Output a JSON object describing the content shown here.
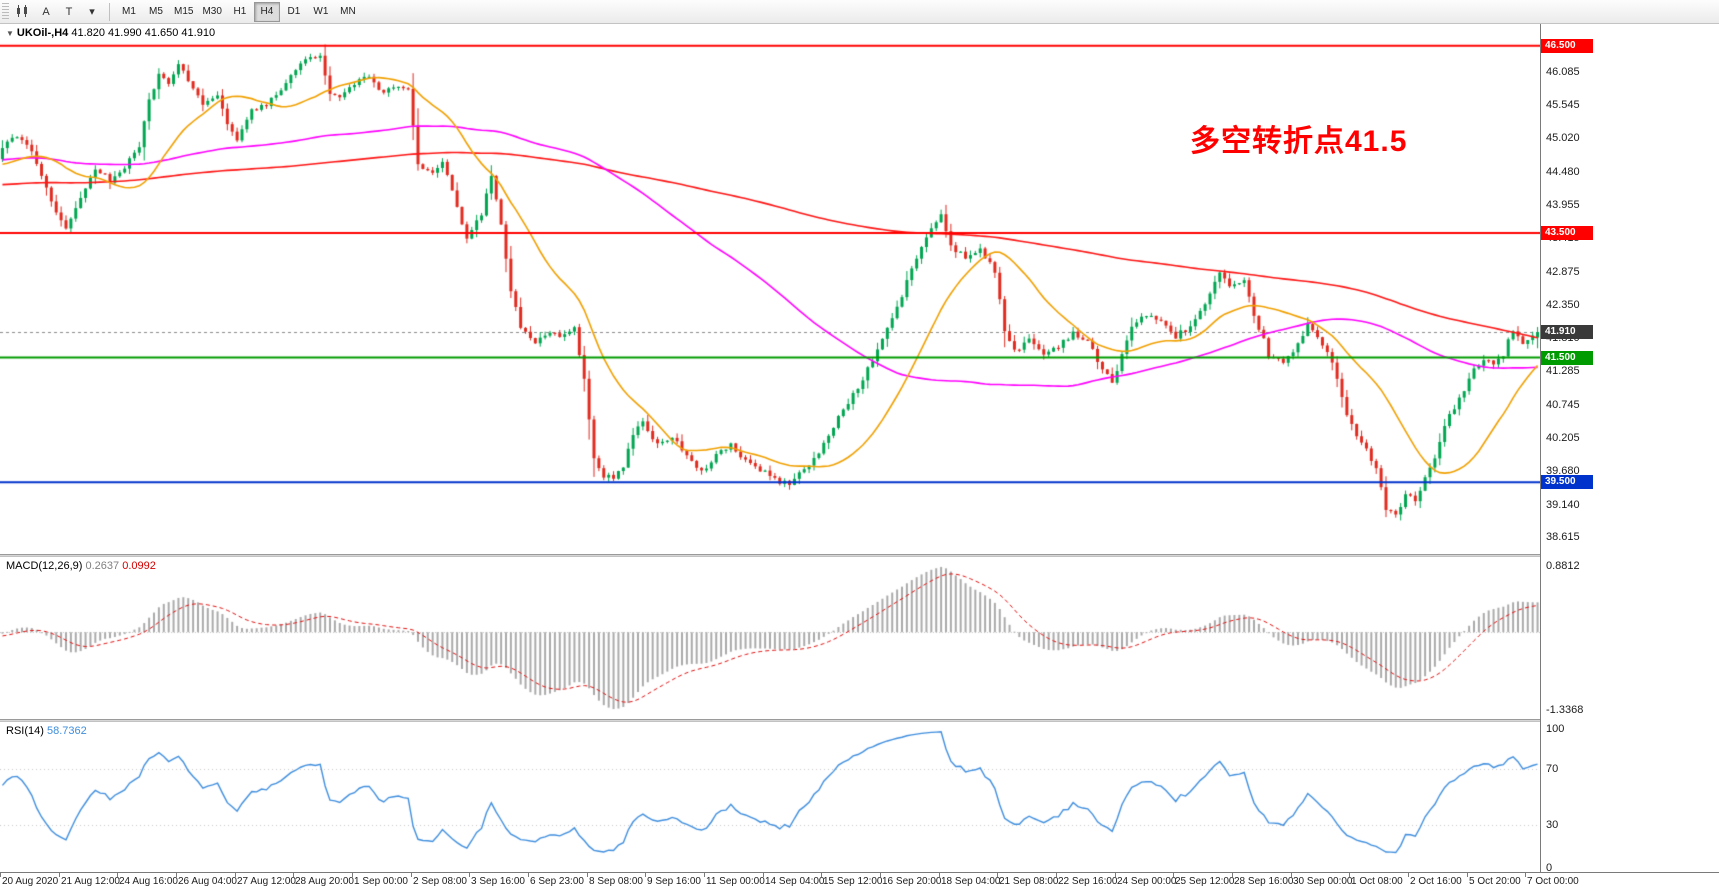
{
  "toolbar": {
    "tools": {
      "arrow": "A",
      "text": "T",
      "caret": "▾"
    },
    "timeframes": [
      "M1",
      "M5",
      "M15",
      "M30",
      "H1",
      "H4",
      "D1",
      "W1",
      "MN"
    ],
    "active_timeframe": "H4"
  },
  "chart": {
    "collapse_glyph": "▼",
    "symbol_label": "UKOil-,H4",
    "ohlc_label": "41.820 41.990 41.650 41.910",
    "annotation": "多空转折点41.5",
    "annotation_color": "#ff0000",
    "price_axis_labels": [
      "46.085",
      "45.545",
      "45.020",
      "44.480",
      "43.955",
      "43.415",
      "42.875",
      "42.350",
      "41.810",
      "41.285",
      "40.745",
      "40.205",
      "39.680",
      "39.140",
      "38.615"
    ]
  },
  "chart_data": {
    "type": "candlestick",
    "symbol": "UKOil-",
    "timeframe": "H4",
    "ohlc_current": {
      "open": 41.82,
      "high": 41.99,
      "low": 41.65,
      "close": 41.91
    },
    "price_range": [
      38.35,
      46.85
    ],
    "num_candles": 315,
    "prehistory": {
      "count": 260,
      "start": 43.6,
      "end": 44.9
    },
    "candle_colors": {
      "up": "#00a651",
      "down": "#e02b20"
    },
    "candle_anchors": [
      [
        0,
        44.9
      ],
      [
        2,
        45.05
      ],
      [
        5,
        44.95
      ],
      [
        8,
        44.4
      ],
      [
        11,
        43.8
      ],
      [
        13,
        43.6
      ],
      [
        16,
        44.1
      ],
      [
        19,
        44.5
      ],
      [
        22,
        44.35
      ],
      [
        25,
        44.55
      ],
      [
        28,
        44.9
      ],
      [
        30,
        45.6
      ],
      [
        32,
        46.05
      ],
      [
        34,
        45.85
      ],
      [
        36,
        46.2
      ],
      [
        38,
        45.95
      ],
      [
        41,
        45.55
      ],
      [
        44,
        45.7
      ],
      [
        46,
        45.2
      ],
      [
        48,
        45.0
      ],
      [
        51,
        45.45
      ],
      [
        54,
        45.55
      ],
      [
        57,
        45.8
      ],
      [
        60,
        46.1
      ],
      [
        63,
        46.35
      ],
      [
        65,
        46.3
      ],
      [
        67,
        45.75
      ],
      [
        69,
        45.65
      ],
      [
        72,
        45.9
      ],
      [
        75,
        46.0
      ],
      [
        78,
        45.75
      ],
      [
        81,
        45.85
      ],
      [
        83,
        45.8
      ],
      [
        85,
        44.6
      ],
      [
        88,
        44.5
      ],
      [
        90,
        44.65
      ],
      [
        93,
        43.9
      ],
      [
        95,
        43.45
      ],
      [
        98,
        43.8
      ],
      [
        100,
        44.4
      ],
      [
        102,
        43.6
      ],
      [
        104,
        42.6
      ],
      [
        106,
        42.0
      ],
      [
        109,
        41.75
      ],
      [
        112,
        41.9
      ],
      [
        115,
        41.85
      ],
      [
        117,
        41.95
      ],
      [
        119,
        41.2
      ],
      [
        121,
        39.9
      ],
      [
        123,
        39.6
      ],
      [
        125,
        39.55
      ],
      [
        127,
        39.75
      ],
      [
        129,
        40.3
      ],
      [
        131,
        40.45
      ],
      [
        134,
        40.1
      ],
      [
        137,
        40.25
      ],
      [
        140,
        39.9
      ],
      [
        143,
        39.65
      ],
      [
        146,
        39.95
      ],
      [
        149,
        40.1
      ],
      [
        152,
        39.85
      ],
      [
        155,
        39.7
      ],
      [
        158,
        39.55
      ],
      [
        161,
        39.45
      ],
      [
        163,
        39.7
      ],
      [
        165,
        39.75
      ],
      [
        168,
        40.1
      ],
      [
        171,
        40.55
      ],
      [
        174,
        40.9
      ],
      [
        177,
        41.3
      ],
      [
        180,
        41.8
      ],
      [
        183,
        42.3
      ],
      [
        186,
        42.9
      ],
      [
        188,
        43.3
      ],
      [
        190,
        43.55
      ],
      [
        192,
        43.8
      ],
      [
        194,
        43.3
      ],
      [
        197,
        43.1
      ],
      [
        200,
        43.25
      ],
      [
        203,
        42.9
      ],
      [
        205,
        41.9
      ],
      [
        207,
        41.6
      ],
      [
        210,
        41.8
      ],
      [
        213,
        41.55
      ],
      [
        216,
        41.7
      ],
      [
        219,
        41.9
      ],
      [
        222,
        41.75
      ],
      [
        225,
        41.3
      ],
      [
        227,
        41.1
      ],
      [
        229,
        41.55
      ],
      [
        231,
        42.0
      ],
      [
        234,
        42.2
      ],
      [
        237,
        42.05
      ],
      [
        240,
        41.85
      ],
      [
        243,
        42.0
      ],
      [
        246,
        42.35
      ],
      [
        249,
        42.85
      ],
      [
        251,
        42.6
      ],
      [
        254,
        42.7
      ],
      [
        256,
        42.2
      ],
      [
        259,
        41.55
      ],
      [
        262,
        41.4
      ],
      [
        265,
        41.7
      ],
      [
        267,
        42.0
      ],
      [
        269,
        41.85
      ],
      [
        271,
        41.6
      ],
      [
        273,
        41.2
      ],
      [
        275,
        40.6
      ],
      [
        277,
        40.25
      ],
      [
        279,
        40.0
      ],
      [
        281,
        39.7
      ],
      [
        283,
        39.1
      ],
      [
        285,
        38.95
      ],
      [
        287,
        39.3
      ],
      [
        289,
        39.2
      ],
      [
        291,
        39.55
      ],
      [
        293,
        39.9
      ],
      [
        295,
        40.4
      ],
      [
        297,
        40.7
      ],
      [
        299,
        41.0
      ],
      [
        301,
        41.3
      ],
      [
        303,
        41.45
      ],
      [
        305,
        41.4
      ],
      [
        307,
        41.55
      ],
      [
        309,
        41.95
      ],
      [
        311,
        41.7
      ],
      [
        313,
        41.85
      ],
      [
        314,
        41.91
      ]
    ],
    "moving_averages": [
      {
        "name": "MA fast",
        "period": 20,
        "type": "sma",
        "color": "#f0a000",
        "width": 1.6
      },
      {
        "name": "MA mid",
        "period": 100,
        "type": "sma",
        "color": "#ff00ff",
        "width": 1.6
      },
      {
        "name": "MA slow",
        "period": 250,
        "type": "sma",
        "color": "#ff1414",
        "width": 1.6
      }
    ],
    "horizontal_levels": [
      {
        "price": 46.5,
        "label": "46.500",
        "color": "#ff0000",
        "width": 2
      },
      {
        "price": 43.5,
        "label": "43.500",
        "color": "#ff0000",
        "width": 2
      },
      {
        "price": 41.5,
        "label": "41.500",
        "color": "#009b00",
        "width": 2
      },
      {
        "price": 39.5,
        "label": "39.500",
        "color": "#0033cc",
        "width": 2
      }
    ],
    "current_price": {
      "price": 41.91,
      "label": "41.910",
      "line_color": "#8a8a8a",
      "tag_color": "#3a3a3a"
    },
    "time_labels": [
      "20 Aug 2020",
      "21 Aug 12:00",
      "24 Aug 16:00",
      "26 Aug 04:00",
      "27 Aug 12:00",
      "28 Aug 20:00",
      "1 Sep 00:00",
      "2 Sep 08:00",
      "3 Sep 16:00",
      "6 Sep 23:00",
      "8 Sep 08:00",
      "9 Sep 16:00",
      "11 Sep 00:00",
      "14 Sep 04:00",
      "15 Sep 12:00",
      "16 Sep 20:00",
      "18 Sep 04:00",
      "21 Sep 08:00",
      "22 Sep 16:00",
      "24 Sep 00:00",
      "25 Sep 12:00",
      "28 Sep 16:00",
      "30 Sep 00:00",
      "1 Oct 08:00",
      "2 Oct 16:00",
      "5 Oct 20:00",
      "7 Oct 00:00"
    ],
    "indicators": {
      "macd": {
        "name": "MACD(12,26,9)",
        "value_main": "0.2637",
        "value_signal": "0.0992",
        "axis_max_label": "0.8812",
        "axis_min_label": "-1.3368",
        "hist_color": "#aaaaaa",
        "signal_color": "#e01010",
        "params": {
          "fast": 12,
          "slow": 26,
          "signal": 9
        }
      },
      "rsi": {
        "name": "RSI(14)",
        "value": "58.7362",
        "period": 14,
        "axis_labels": [
          "100",
          "70",
          "30",
          "0"
        ],
        "levels": [
          70,
          30
        ],
        "color": "#3f8ede"
      }
    }
  }
}
